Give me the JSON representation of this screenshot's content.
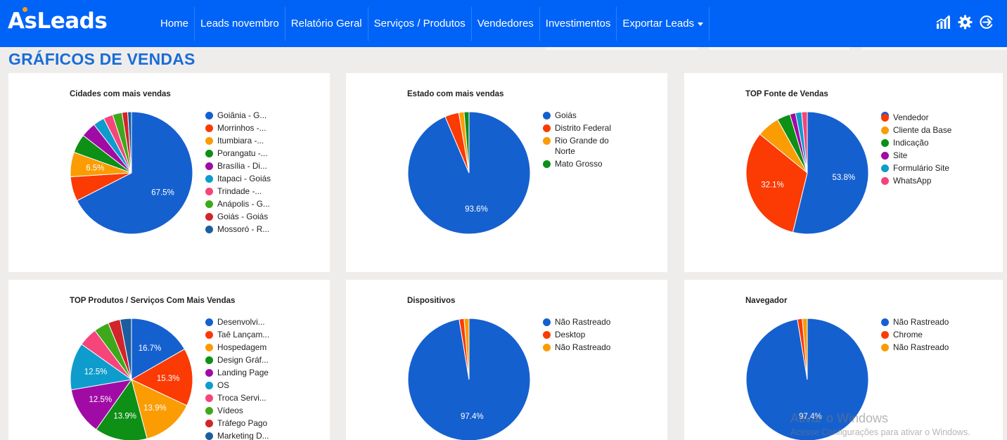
{
  "app": {
    "logo_text": "AsLeads",
    "page_title": "GRÁFICOS DE VENDAS",
    "nav": [
      "Home",
      "Leads novembro",
      "Relatório Geral",
      "Serviços / Produtos",
      "Vendedores",
      "Investimentos",
      "Exportar Leads"
    ],
    "icons": [
      "chart-bars-icon",
      "gear-icon",
      "logout-icon"
    ],
    "colors": {
      "brand": "#0063f7",
      "title": "#1a6dd6",
      "background": "#efedec"
    }
  },
  "chart_data": [
    {
      "type": "pie",
      "title": "Cidades com mais vendas",
      "labels": [
        "Goiânia - G...",
        "Morrinhos -...",
        "Itumbiara -...",
        "Porangatu -...",
        "Brasília - Di...",
        "Itapaci - Goiás",
        "Trindade -...",
        "Anápolis - G...",
        "Goiás - Goiás",
        "Mossoró - R..."
      ],
      "values": [
        67.5,
        6.5,
        6.5,
        5.0,
        4.0,
        3.0,
        2.5,
        2.5,
        1.5,
        1.0
      ],
      "slice_labels": [
        "67.5%",
        "",
        "6.5%",
        "",
        "",
        "",
        "",
        "",
        "",
        ""
      ],
      "colors": [
        "#1560cf",
        "#fb3a04",
        "#fb9c03",
        "#0e8f16",
        "#a10ba5",
        "#0d9ccc",
        "#f5457a",
        "#3fa81a",
        "#d1252b",
        "#1b5ea0"
      ]
    },
    {
      "type": "pie",
      "title": "Estado com mais vendas",
      "labels": [
        "Goiás",
        "Distrito Federal",
        "Rio Grande do Norte",
        "Mato Grosso"
      ],
      "values": [
        93.6,
        3.7,
        1.4,
        1.3
      ],
      "slice_labels": [
        "93.6%",
        "",
        "",
        ""
      ],
      "colors": [
        "#1560cf",
        "#fb3a04",
        "#fb9c03",
        "#0e8f16"
      ]
    },
    {
      "type": "pie",
      "title": "TOP Fonte de Vendas",
      "labels": [
        "",
        "Vendedor",
        "Cliente da Base",
        "Indicação",
        "Site",
        "Formulário Site",
        "WhatsApp"
      ],
      "values": [
        53.8,
        32.1,
        6.0,
        3.5,
        1.5,
        1.6,
        1.5
      ],
      "slice_labels": [
        "53.8%",
        "32.1%",
        "",
        "",
        "",
        "",
        ""
      ],
      "colors": [
        "#1560cf",
        "#fb3a04",
        "#fb9c03",
        "#0e8f16",
        "#a10ba5",
        "#0d9ccc",
        "#f5457a"
      ]
    },
    {
      "type": "pie",
      "title": "TOP Produtos / Serviços Com Mais Vendas",
      "labels": [
        "Desenvolvi...",
        "Taê Lançam...",
        "Hospedagem",
        "Design Gráf...",
        "Landing Page",
        "OS",
        "Troca Servi...",
        "Vídeos",
        "Tráfego Pago",
        "Marketing D..."
      ],
      "values": [
        16.7,
        15.3,
        13.9,
        13.9,
        12.5,
        12.5,
        5.0,
        4.0,
        3.2,
        3.0
      ],
      "slice_labels": [
        "16.7%",
        "15.3%",
        "13.9%",
        "13.9%",
        "12.5%",
        "12.5%",
        "",
        "",
        "",
        ""
      ],
      "colors": [
        "#1560cf",
        "#fb3a04",
        "#fb9c03",
        "#0e8f16",
        "#a10ba5",
        "#0d9ccc",
        "#f5457a",
        "#3fa81a",
        "#d1252b",
        "#1b5ea0"
      ]
    },
    {
      "type": "pie",
      "title": "Dispositivos",
      "labels": [
        "Não Rastreado",
        "Desktop",
        "Não Rastreado"
      ],
      "values": [
        97.4,
        1.3,
        1.3
      ],
      "slice_labels": [
        "97.4%",
        "",
        ""
      ],
      "colors": [
        "#1560cf",
        "#fb3a04",
        "#fb9c03"
      ]
    },
    {
      "type": "pie",
      "title": "Navegador",
      "labels": [
        "Não Rastreado",
        "Chrome",
        "Não Rastreado"
      ],
      "values": [
        97.4,
        1.3,
        1.3
      ],
      "slice_labels": [
        "97.4%",
        "",
        ""
      ],
      "colors": [
        "#1560cf",
        "#fb3a04",
        "#fb9c03"
      ]
    }
  ],
  "watermark": {
    "line1": "Ativar o Windows",
    "line2": "Acesse Configurações para ativar o Windows."
  }
}
